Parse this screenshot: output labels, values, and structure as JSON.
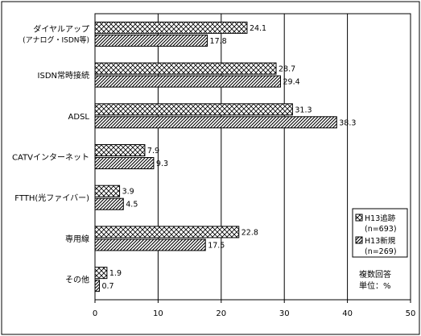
{
  "chart_data": {
    "type": "bar",
    "orientation": "horizontal",
    "categories": [
      "ダイヤルアップ\n(アナログ・ISDN等)",
      "ISDN常時接続",
      "ADSL",
      "CATVインターネット",
      "FTTH(光ファイバー)",
      "専用線",
      "その他"
    ],
    "series": [
      {
        "name": "H13追跡",
        "sub": "(n=693)",
        "values": [
          24.1,
          28.7,
          31.3,
          7.9,
          3.9,
          22.8,
          1.9
        ],
        "pattern": "crosshatch"
      },
      {
        "name": "H13新規",
        "sub": "(n=269)",
        "values": [
          17.8,
          29.4,
          38.3,
          9.3,
          4.5,
          17.5,
          0.7
        ],
        "pattern": "diagonal"
      }
    ],
    "xlim": [
      0,
      50
    ],
    "xticks": [
      0,
      10,
      20,
      30,
      40,
      50
    ],
    "grid": true,
    "legend_position": "right",
    "note": [
      "複数回答",
      "単位：%"
    ]
  }
}
